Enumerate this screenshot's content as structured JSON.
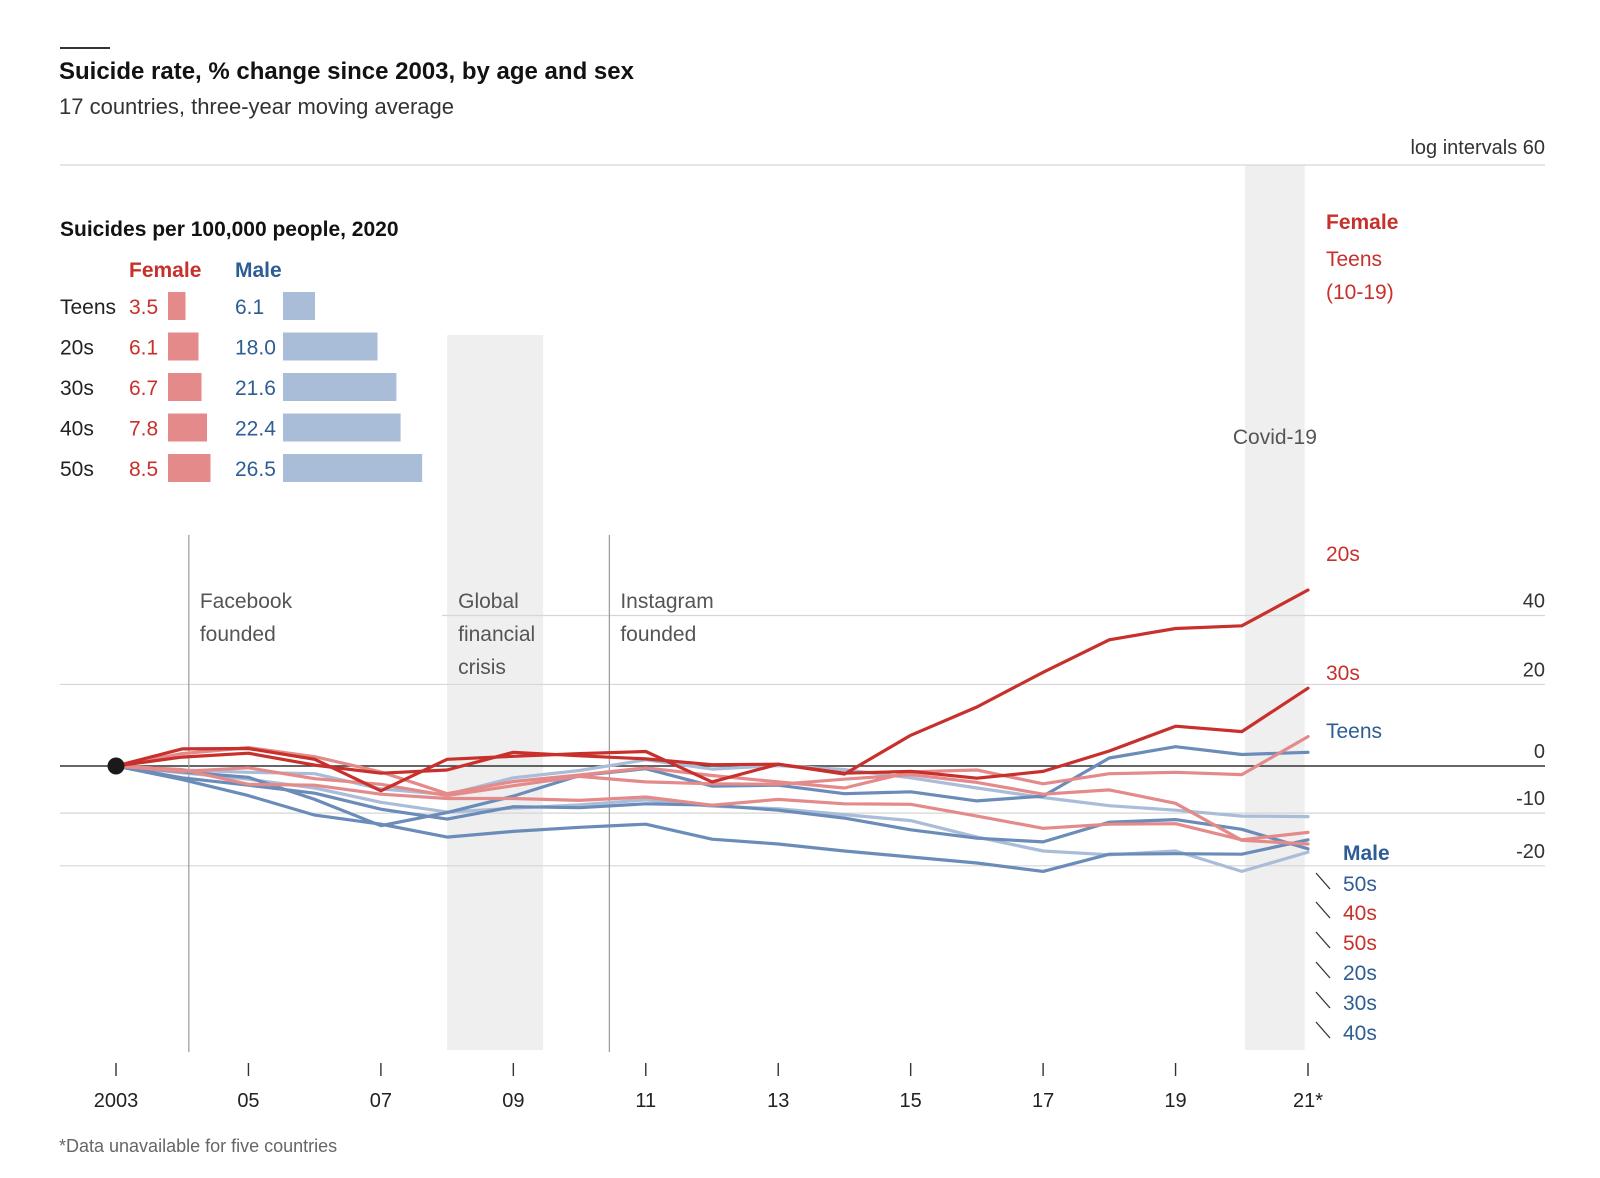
{
  "title": "Suicide rate, % change since 2003, by age and sex",
  "subtitle": "17 countries, three-year moving average",
  "footnote": "*Data unavailable for five countries",
  "colors": {
    "female_dark": "#c8302c",
    "female_light": "#e58a8a",
    "male_dark": "#6b8cb8",
    "male_light": "#a9bcd8",
    "female_label": "#c8302c",
    "male_label": "#2e5d94",
    "shade": "#efefef",
    "grid": "#d6d6d6",
    "zero": "#333333"
  },
  "chart_data": [
    {
      "type": "line",
      "title": "Suicide rate, % change since 2003, by age and sex",
      "subtitle": "17 countries, three-year moving average",
      "scale_label": "log intervals 60",
      "y_scale": "log",
      "ylim": [
        -20,
        60
      ],
      "y_ticks": [
        {
          "value": 40,
          "label": "40"
        },
        {
          "value": 20,
          "label": "20"
        },
        {
          "value": 0,
          "label": "0"
        },
        {
          "value": -10,
          "label": "-10"
        },
        {
          "value": -20,
          "label": "-20"
        }
      ],
      "xlim": [
        2003,
        2021
      ],
      "x_ticks": [
        {
          "value": 2003,
          "label": "2003"
        },
        {
          "value": 2005,
          "label": "05"
        },
        {
          "value": 2007,
          "label": "07"
        },
        {
          "value": 2009,
          "label": "09"
        },
        {
          "value": 2011,
          "label": "11"
        },
        {
          "value": 2013,
          "label": "13"
        },
        {
          "value": 2015,
          "label": "15"
        },
        {
          "value": 2017,
          "label": "17"
        },
        {
          "value": 2019,
          "label": "19"
        },
        {
          "value": 2021,
          "label": "21*"
        }
      ],
      "x": [
        2003,
        2004,
        2005,
        2006,
        2007,
        2008,
        2009,
        2010,
        2011,
        2012,
        2013,
        2014,
        2015,
        2016,
        2017,
        2018,
        2019,
        2020,
        2021
      ],
      "annotations": [
        {
          "label": [
            "Facebook",
            "founded"
          ],
          "x": 2004.1,
          "kind": "line"
        },
        {
          "label": [
            "Global",
            "financial",
            "crisis"
          ],
          "x_range": [
            2008,
            2009.45
          ],
          "kind": "shade"
        },
        {
          "label": [
            "Instagram",
            "founded"
          ],
          "x": 2010.45,
          "kind": "line"
        },
        {
          "label": [
            "Covid-19"
          ],
          "x_range": [
            2020.05,
            2020.95
          ],
          "kind": "shade"
        }
      ],
      "group_labels": {
        "female": "Female",
        "male": "Male"
      },
      "series": [
        {
          "name": "Teens (10-19)",
          "label_lines": [
            "Teens",
            "(10-19)"
          ],
          "sex": "female",
          "shade": "dark",
          "values": [
            0,
            3.9,
            4.0,
            1.5,
            -5.4,
            1.5,
            2.2,
            2.8,
            3.3,
            -3.5,
            0.4,
            -1.8,
            7.1,
            14.1,
            23.3,
            32.6,
            36.0,
            36.8,
            48.2
          ]
        },
        {
          "name": "20s",
          "sex": "female",
          "shade": "dark",
          "values": [
            0,
            2.0,
            2.9,
            0.2,
            -1.6,
            -0.9,
            3.1,
            2.3,
            1.6,
            0.3,
            0.4,
            -1.6,
            -1.2,
            -2.7,
            -1.2,
            3.4,
            9.3,
            8.0,
            19.0
          ]
        },
        {
          "name": "30s",
          "sex": "female",
          "shade": "light",
          "values": [
            0,
            2.8,
            4.2,
            2.1,
            -1.3,
            -6.0,
            -3.4,
            -2.0,
            -0.4,
            -2.1,
            -3.5,
            -4.8,
            -1.3,
            -0.9,
            -3.9,
            -1.7,
            -1.4,
            -1.9,
            6.8
          ]
        },
        {
          "name": "40s",
          "sex": "female",
          "shade": "light",
          "values": [
            0,
            -1.2,
            -0.4,
            -2.8,
            -4.0,
            -6.4,
            -4.3,
            -2.3,
            -3.5,
            -3.9,
            -4.0,
            -2.9,
            -1.9,
            -3.6,
            -6.1,
            -5.2,
            -8.0,
            -15.3,
            -16.0
          ]
        },
        {
          "name": "50s",
          "sex": "female",
          "shade": "light",
          "values": [
            0,
            -0.8,
            -4.0,
            -4.2,
            -6.1,
            -7.0,
            -7.0,
            -7.4,
            -6.7,
            -8.4,
            -7.2,
            -8.1,
            -8.2,
            -10.6,
            -13.0,
            -12.2,
            -12.1,
            -15.2,
            -13.8
          ]
        },
        {
          "name": "Teens",
          "sex": "male",
          "shade": "dark",
          "values": [
            0,
            -1.3,
            -2.5,
            -7.2,
            -12.5,
            -9.9,
            -6.5,
            -2.1,
            -0.6,
            -4.4,
            -4.2,
            -6.0,
            -5.6,
            -7.5,
            -6.5,
            1.8,
            4.4,
            2.6,
            3.1
          ]
        },
        {
          "name": "50s",
          "sex": "male",
          "shade": "light",
          "values": [
            0,
            -0.9,
            -1.4,
            -1.7,
            -5.0,
            -6.2,
            -2.6,
            -1.0,
            1.4,
            -0.7,
            0.1,
            -0.8,
            -2.6,
            -4.8,
            -6.8,
            -8.5,
            -9.4,
            -10.6,
            -10.7
          ]
        },
        {
          "name": "20s",
          "sex": "male",
          "shade": "dark",
          "values": [
            0,
            -2.6,
            -4.2,
            -5.9,
            -9.2,
            -11.2,
            -8.7,
            -8.9,
            -8.1,
            -8.4,
            -9.4,
            -11.0,
            -13.3,
            -14.9,
            -15.6,
            -11.8,
            -11.3,
            -13.2,
            -16.9
          ]
        },
        {
          "name": "30s",
          "sex": "male",
          "shade": "dark",
          "values": [
            0,
            -3.0,
            -6.4,
            -10.4,
            -12.2,
            -14.7,
            -13.6,
            -12.8,
            -12.2,
            -15.1,
            -16.0,
            -17.3,
            -18.4,
            -19.5,
            -21.0,
            -17.9,
            -17.8,
            -17.9,
            -15.2
          ]
        },
        {
          "name": "40s",
          "sex": "male",
          "shade": "light",
          "values": [
            0,
            -1.5,
            -2.9,
            -4.8,
            -7.8,
            -9.8,
            -9.0,
            -8.3,
            -7.3,
            -8.6,
            -9.1,
            -10.3,
            -11.5,
            -14.7,
            -17.3,
            -18.0,
            -17.3,
            -21.0,
            -17.5
          ]
        }
      ]
    },
    {
      "type": "bar",
      "title": "Suicides per 100,000 people, 2020",
      "categories": [
        "Teens",
        "20s",
        "30s",
        "40s",
        "50s"
      ],
      "series": [
        {
          "name": "Female",
          "values": [
            3.5,
            6.1,
            6.7,
            7.8,
            8.5
          ],
          "labels": [
            "3.5",
            "6.1",
            "6.7",
            "7.8",
            "8.5"
          ]
        },
        {
          "name": "Male",
          "values": [
            6.1,
            18.0,
            21.6,
            22.4,
            26.5
          ],
          "labels": [
            "6.1",
            "18.0",
            "21.6",
            "22.4",
            "26.5"
          ]
        }
      ]
    }
  ]
}
